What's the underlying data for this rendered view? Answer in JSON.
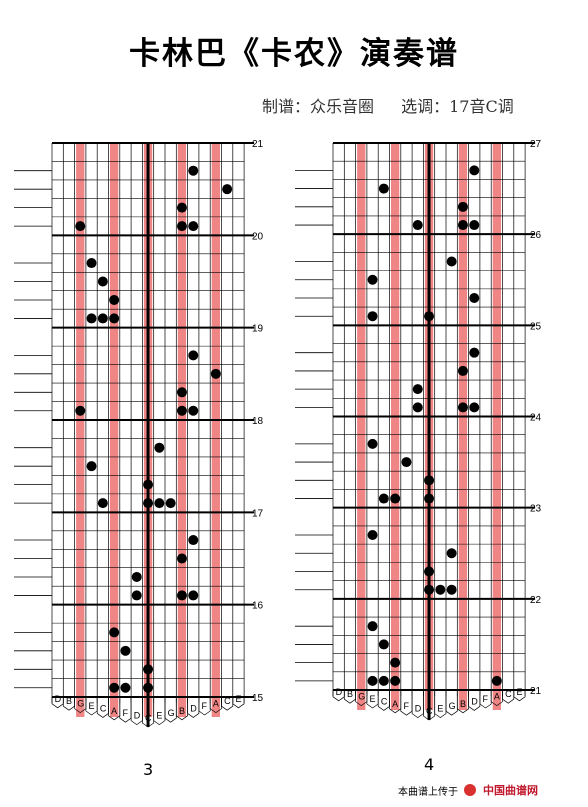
{
  "document": {
    "title": "卡林巴《卡农》演奏谱",
    "notation_by": "制谱：众乐音圈",
    "key_selection": "选调：17音C调",
    "footer_prefix": "本曲谱上传于",
    "footer_site": "中国曲谱网"
  },
  "keys": [
    "D",
    "B",
    "G",
    "E",
    "C",
    "A",
    "F",
    "D",
    "C",
    "E",
    "G",
    "B",
    "D",
    "F",
    "A",
    "C",
    "E"
  ],
  "colors": {
    "highlight_tine": "#f08585",
    "line": "#000000",
    "pink_marker": "#e060c0"
  },
  "panels": [
    {
      "page_number": "3",
      "measure_labels": [
        "21",
        "20",
        "19",
        "18",
        "17",
        "16",
        "15"
      ],
      "rows": [
        [],
        [
          12
        ],
        [
          15
        ],
        [
          11
        ],
        [
          2,
          11,
          12
        ],
        [],
        [
          3
        ],
        [
          4
        ],
        [
          5
        ],
        [
          3,
          4,
          5
        ],
        [],
        [
          12
        ],
        [
          14
        ],
        [
          11
        ],
        [
          2,
          11,
          12
        ],
        [],
        [
          9
        ],
        [
          3
        ],
        [
          8
        ],
        [
          4,
          8,
          9,
          10
        ],
        [],
        [
          12
        ],
        [
          11
        ],
        [
          7
        ],
        [
          7,
          11,
          12
        ],
        [],
        [
          5
        ],
        [
          6
        ],
        [
          8
        ],
        [
          5,
          6,
          8
        ]
      ]
    },
    {
      "page_number": "4",
      "measure_labels": [
        "27",
        "26",
        "25",
        "24",
        "23",
        "22",
        "21"
      ],
      "rows": [
        [],
        [
          12
        ],
        [
          4
        ],
        [
          11
        ],
        [
          7,
          11,
          12
        ],
        [],
        [
          10
        ],
        [
          3
        ],
        [
          12
        ],
        [
          3,
          8
        ],
        [],
        [
          12
        ],
        [
          11
        ],
        [
          7
        ],
        [
          7,
          11,
          12
        ],
        [],
        [
          3
        ],
        [
          6
        ],
        [
          8
        ],
        [
          4,
          5,
          8
        ],
        [],
        [
          3
        ],
        [
          10
        ],
        [
          8
        ],
        [
          8,
          9,
          10
        ],
        [],
        [
          3
        ],
        [
          4
        ],
        [
          5
        ],
        [
          3,
          4,
          5,
          14
        ]
      ]
    }
  ]
}
